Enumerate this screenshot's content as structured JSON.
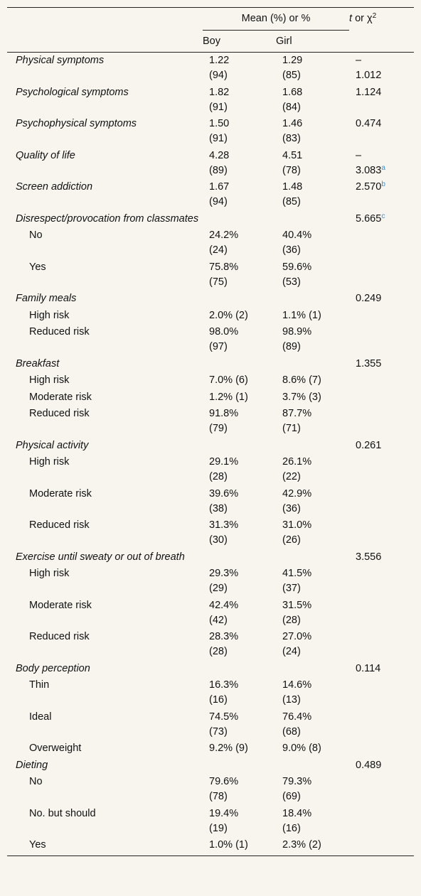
{
  "header": {
    "group": "Mean (%) or %",
    "stat_italic": "t",
    "stat_text": "or χ",
    "stat_sup": "2",
    "boy": "Boy",
    "girl": "Girl"
  },
  "sections": [
    {
      "label": "Physical symptoms",
      "boy": [
        "1.22",
        "(94)"
      ],
      "girl": [
        "1.29",
        "(85)"
      ],
      "stat": [
        "–",
        "1.012"
      ],
      "items": []
    },
    {
      "label": "Psychological symptoms",
      "boy": [
        "1.82",
        "(91)"
      ],
      "girl": [
        "1.68",
        "(84)"
      ],
      "stat": [
        "1.124"
      ],
      "items": []
    },
    {
      "label": "Psychophysical symptoms",
      "boy": [
        "1.50",
        "(91)"
      ],
      "girl": [
        "1.46",
        "(83)"
      ],
      "stat": [
        "0.474"
      ],
      "items": []
    },
    {
      "label": "Quality of life",
      "boy": [
        "4.28",
        "(89)"
      ],
      "girl": [
        "4.51",
        "(78)"
      ],
      "stat": [
        "–",
        "3.083"
      ],
      "stat_sup": "a",
      "items": []
    },
    {
      "label": "Screen addiction",
      "boy": [
        "1.67",
        "(94)"
      ],
      "girl": [
        "1.48",
        "(85)"
      ],
      "stat": [
        "2.570"
      ],
      "stat_sup": "b",
      "items": []
    },
    {
      "label": "Disrespect/provocation from classmates",
      "boy": [],
      "girl": [],
      "stat": [
        "5.665"
      ],
      "stat_sup": "c",
      "items": [
        {
          "label": "No",
          "boy": [
            "24.2%",
            "(24)"
          ],
          "girl": [
            "40.4%",
            "(36)"
          ]
        },
        {
          "label": "Yes",
          "boy": [
            "75.8%",
            "(75)"
          ],
          "girl": [
            "59.6%",
            "(53)"
          ]
        }
      ]
    },
    {
      "label": "Family meals",
      "boy": [],
      "girl": [],
      "stat": [
        "0.249"
      ],
      "items": [
        {
          "label": "High risk",
          "boy": [
            "2.0% (2)"
          ],
          "girl": [
            "1.1% (1)"
          ]
        },
        {
          "label": "Reduced risk",
          "boy": [
            "98.0%",
            "(97)"
          ],
          "girl": [
            "98.9%",
            "(89)"
          ]
        }
      ]
    },
    {
      "label": "Breakfast",
      "boy": [],
      "girl": [],
      "stat": [
        "1.355"
      ],
      "items": [
        {
          "label": "High risk",
          "boy": [
            "7.0% (6)"
          ],
          "girl": [
            "8.6% (7)"
          ]
        },
        {
          "label": "Moderate risk",
          "boy": [
            "1.2% (1)"
          ],
          "girl": [
            "3.7% (3)"
          ]
        },
        {
          "label": "Reduced risk",
          "boy": [
            "91.8%",
            "(79)"
          ],
          "girl": [
            "87.7%",
            "(71)"
          ]
        }
      ]
    },
    {
      "label": "Physical activity",
      "boy": [],
      "girl": [],
      "stat": [
        "0.261"
      ],
      "items": [
        {
          "label": "High risk",
          "boy": [
            "29.1%",
            "(28)"
          ],
          "girl": [
            "26.1%",
            "(22)"
          ]
        },
        {
          "label": "Moderate risk",
          "boy": [
            "39.6%",
            "(38)"
          ],
          "girl": [
            "42.9%",
            "(36)"
          ]
        },
        {
          "label": "Reduced risk",
          "boy": [
            "31.3%",
            "(30)"
          ],
          "girl": [
            "31.0%",
            "(26)"
          ]
        }
      ]
    },
    {
      "label": "Exercise until sweaty or out of breath",
      "boy": [],
      "girl": [],
      "stat": [
        "3.556"
      ],
      "items": [
        {
          "label": "High risk",
          "boy": [
            "29.3%",
            "(29)"
          ],
          "girl": [
            "41.5%",
            "(37)"
          ]
        },
        {
          "label": "Moderate risk",
          "boy": [
            "42.4%",
            "(42)"
          ],
          "girl": [
            "31.5%",
            "(28)"
          ]
        },
        {
          "label": "Reduced risk",
          "boy": [
            "28.3%",
            "(28)"
          ],
          "girl": [
            "27.0%",
            "(24)"
          ]
        }
      ]
    },
    {
      "label": "Body perception",
      "boy": [],
      "girl": [],
      "stat": [
        "0.114"
      ],
      "items": [
        {
          "label": "Thin",
          "boy": [
            "16.3%",
            "(16)"
          ],
          "girl": [
            "14.6%",
            "(13)"
          ]
        },
        {
          "label": "Ideal",
          "boy": [
            "74.5%",
            "(73)"
          ],
          "girl": [
            "76.4%",
            "(68)"
          ]
        },
        {
          "label": "Overweight",
          "boy": [
            "9.2% (9)"
          ],
          "girl": [
            "9.0% (8)"
          ]
        }
      ]
    },
    {
      "label": "Dieting",
      "boy": [],
      "girl": [],
      "stat": [
        "0.489"
      ],
      "items": [
        {
          "label": "No",
          "boy": [
            "79.6%",
            "(78)"
          ],
          "girl": [
            "79.3%",
            "(69)"
          ]
        },
        {
          "label": "No. but should",
          "boy": [
            "19.4%",
            "(19)"
          ],
          "girl": [
            "18.4%",
            "(16)"
          ]
        },
        {
          "label": "Yes",
          "boy": [
            "1.0% (1)"
          ],
          "girl": [
            "2.3% (2)"
          ]
        }
      ]
    }
  ]
}
